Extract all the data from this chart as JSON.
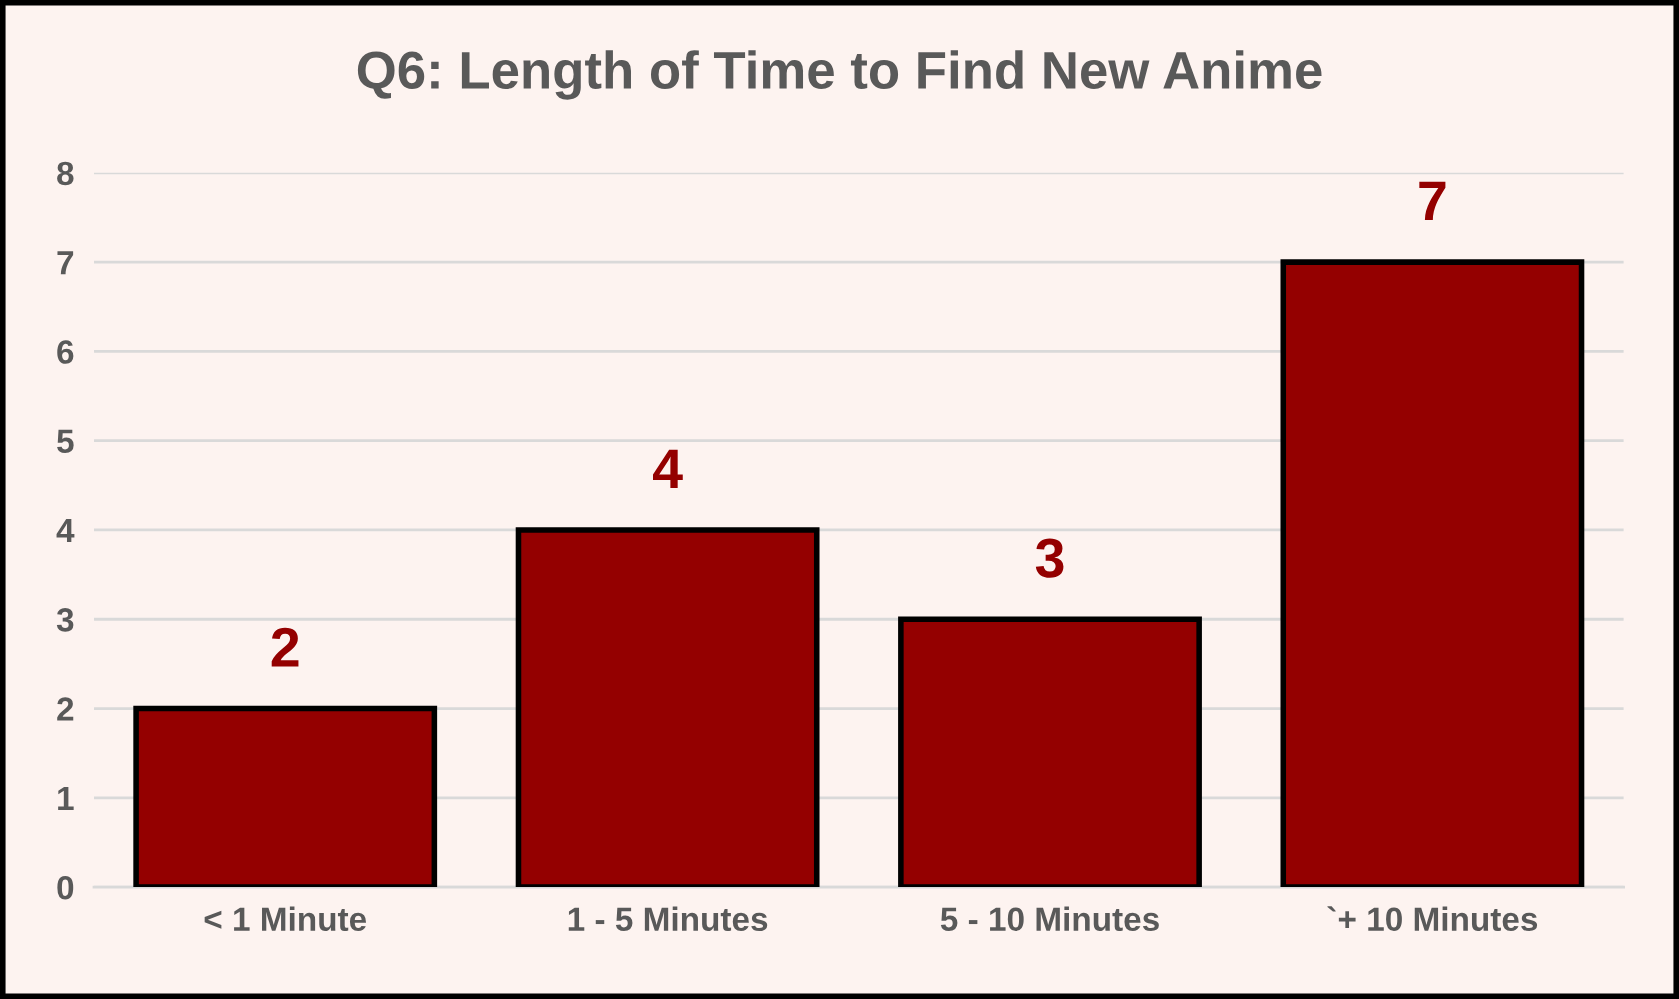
{
  "chart_data": {
    "type": "bar",
    "title": "Q6: Length of Time to Find New Anime",
    "categories": [
      "< 1 Minute",
      "1 - 5 Minutes",
      "5 - 10 Minutes",
      "`+ 10 Minutes"
    ],
    "values": [
      2,
      4,
      3,
      7
    ],
    "color": "#940000",
    "ylim": [
      0,
      8
    ],
    "yticks": [
      0,
      1,
      2,
      3,
      4,
      5,
      6,
      7,
      8
    ],
    "grid": "y",
    "data_labels": true
  }
}
